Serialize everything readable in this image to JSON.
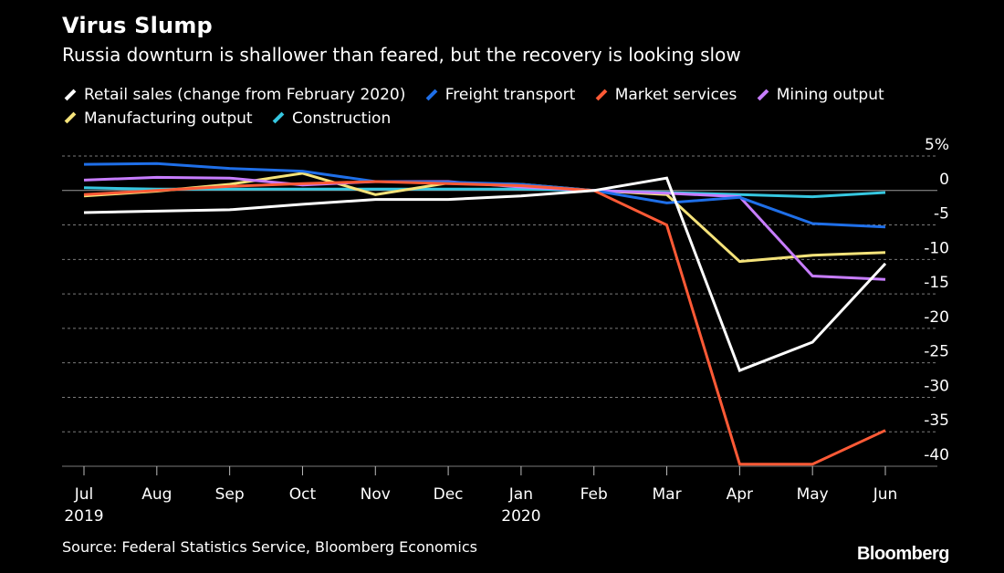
{
  "title": "Virus Slump",
  "subtitle": "Russia downturn is shallower than feared, but the recovery is looking slow",
  "source": "Source: Federal Statistics Service, Bloomberg Economics",
  "brand": "Bloomberg",
  "colors": {
    "background": "#000000",
    "gridline": "#7a7a7a",
    "zero_line": "#9a9a9a",
    "text": "#ffffff"
  },
  "chart_data": {
    "type": "line",
    "title": "Virus Slump",
    "subtitle": "Russia downturn is shallower than feared, but the recovery is looking slow",
    "xlabel": "",
    "ylabel": "",
    "categories": [
      "Jul",
      "Aug",
      "Sep",
      "Oct",
      "Nov",
      "Dec",
      "Jan",
      "Feb",
      "Mar",
      "Apr",
      "May",
      "Jun"
    ],
    "x_tick_labels": [
      [
        "Jul",
        "2019"
      ],
      [
        "Aug"
      ],
      [
        "Sep"
      ],
      [
        "Oct"
      ],
      [
        "Nov"
      ],
      [
        "Dec"
      ],
      [
        "Jan",
        "2020"
      ],
      [
        "Feb"
      ],
      [
        "Mar"
      ],
      [
        "Apr"
      ],
      [
        "May"
      ],
      [
        "Jun"
      ]
    ],
    "ylim": [
      -40,
      5
    ],
    "y_ticks": [
      5,
      0,
      -5,
      -10,
      -15,
      -20,
      -25,
      -30,
      -35,
      -40
    ],
    "y_tick_labels": [
      "5%",
      "0",
      "-5",
      "-10",
      "-15",
      "-20",
      "-25",
      "-30",
      "-35",
      "-40"
    ],
    "grid": true,
    "grid_style": "dashed horizontal",
    "axis_side": "right",
    "legend_position": "top",
    "series": [
      {
        "name": "Retail sales (change from February 2020)",
        "color": "#ffffff",
        "values": [
          -3.2,
          -3,
          -2.8,
          -2,
          -1.3,
          -1.3,
          -0.8,
          0,
          1.8,
          -26.1,
          -22,
          -10.6
        ]
      },
      {
        "name": "Freight transport",
        "color": "#1f6fe8",
        "values": [
          3.8,
          3.9,
          3.2,
          2.8,
          1.3,
          1.2,
          0.9,
          0,
          -1.8,
          -1,
          -4.8,
          -5.3
        ]
      },
      {
        "name": "Market services",
        "color": "#ff5a36",
        "values": [
          -0.6,
          0,
          0.6,
          1,
          1.3,
          1,
          0.7,
          0,
          -5,
          -39.7,
          -39.7,
          -34.8
        ]
      },
      {
        "name": "Mining output",
        "color": "#c77dff",
        "values": [
          1.5,
          1.9,
          1.8,
          0.8,
          1.3,
          1.3,
          0.5,
          0,
          -0.4,
          -0.9,
          -12.4,
          -12.9
        ]
      },
      {
        "name": "Manufacturing output",
        "color": "#f5e37a",
        "values": [
          -0.8,
          -0.1,
          0.9,
          2.5,
          -0.6,
          1.1,
          0.9,
          0,
          -0.6,
          -10.3,
          -9.4,
          -9
        ]
      },
      {
        "name": "Construction",
        "color": "#36c7e0",
        "values": [
          0.4,
          0.2,
          0.2,
          0.2,
          0.2,
          0.2,
          0.2,
          0,
          -0.3,
          -0.6,
          -0.9,
          -0.3
        ]
      }
    ]
  }
}
